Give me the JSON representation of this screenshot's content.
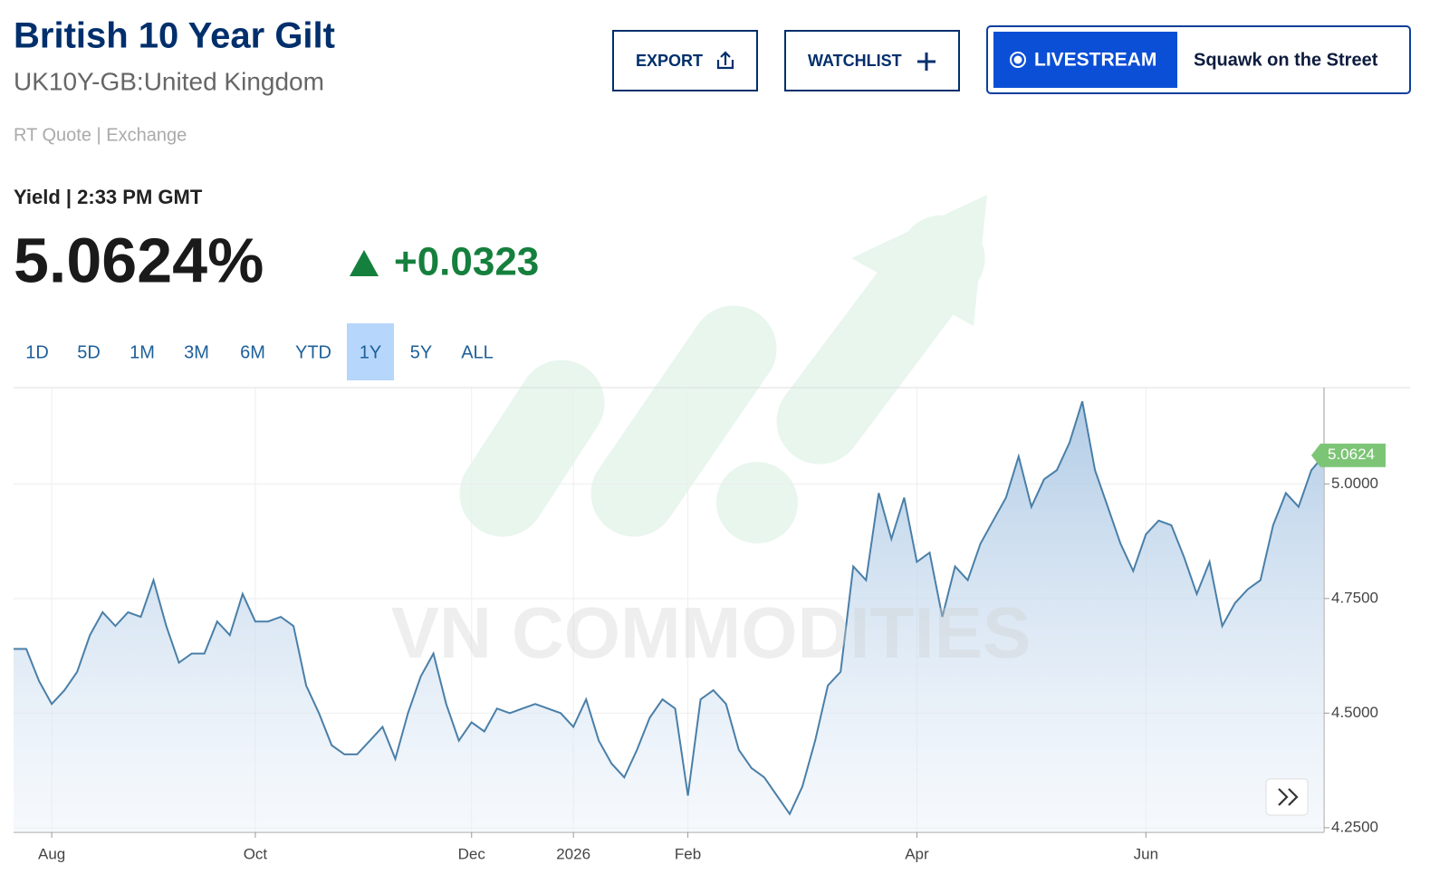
{
  "header": {
    "title": "British 10 Year Gilt",
    "subtitle": "UK10Y-GB:United Kingdom",
    "quote_source": "RT Quote | Exchange",
    "yield_time": "Yield | 2:33 PM GMT",
    "price": "5.0624%",
    "change": "+0.0323"
  },
  "buttons": {
    "export": "EXPORT",
    "watchlist": "WATCHLIST",
    "livestream": "LIVESTREAM",
    "show": "Squawk on the Street"
  },
  "ranges": {
    "options": [
      "1D",
      "5D",
      "1M",
      "3M",
      "6M",
      "YTD",
      "1Y",
      "5Y",
      "ALL"
    ],
    "active": 6
  },
  "watermark": "VN COMMODITIES",
  "chart_data": {
    "type": "line",
    "color": "#4a7fa8",
    "grid": true,
    "categories": [
      null,
      null,
      null,
      "Aug",
      null,
      null,
      null,
      null,
      null,
      null,
      null,
      null,
      null,
      null,
      null,
      null,
      null,
      null,
      null,
      "Oct",
      null,
      null,
      null,
      null,
      null,
      null,
      null,
      null,
      null,
      null,
      null,
      null,
      null,
      null,
      null,
      null,
      "Dec",
      null,
      null,
      null,
      null,
      null,
      null,
      null,
      "2026",
      null,
      null,
      null,
      null,
      null,
      null,
      null,
      null,
      "Feb",
      null,
      null,
      null,
      null,
      null,
      null,
      null,
      null,
      null,
      null,
      null,
      null,
      null,
      null,
      null,
      null,
      null,
      "Apr",
      null,
      null,
      null,
      null,
      null,
      null,
      null,
      null,
      null,
      null,
      null,
      null,
      null,
      null,
      null,
      null,
      null,
      "Jun",
      null,
      null,
      null,
      null,
      null,
      null,
      null,
      null,
      null,
      null,
      null,
      null,
      null,
      null
    ],
    "values": [
      4.64,
      4.64,
      4.57,
      4.52,
      4.55,
      4.59,
      4.67,
      4.72,
      4.69,
      4.72,
      4.71,
      4.79,
      4.69,
      4.61,
      4.63,
      4.63,
      4.7,
      4.67,
      4.76,
      4.7,
      4.7,
      4.71,
      4.69,
      4.56,
      4.5,
      4.43,
      4.41,
      4.41,
      4.44,
      4.47,
      4.4,
      4.5,
      4.58,
      4.63,
      4.52,
      4.44,
      4.48,
      4.46,
      4.51,
      4.5,
      4.51,
      4.52,
      4.51,
      4.5,
      4.47,
      4.53,
      4.44,
      4.39,
      4.36,
      4.42,
      4.49,
      4.53,
      4.51,
      4.32,
      4.53,
      4.55,
      4.52,
      4.42,
      4.38,
      4.36,
      4.32,
      4.28,
      4.34,
      4.44,
      4.56,
      4.59,
      4.82,
      4.79,
      4.98,
      4.88,
      4.97,
      4.83,
      4.85,
      4.71,
      4.82,
      4.79,
      4.87,
      4.92,
      4.97,
      5.06,
      4.95,
      5.01,
      5.03,
      5.09,
      5.18,
      5.03,
      4.95,
      4.87,
      4.81,
      4.89,
      4.92,
      4.91,
      4.84,
      4.76,
      4.83,
      4.69,
      4.74,
      4.77,
      4.79,
      4.91,
      4.98,
      4.95,
      5.03,
      5.0624
    ],
    "ylim": [
      4.24,
      5.21
    ],
    "yticks": [
      {
        "value": 4.25,
        "label": "4.2500"
      },
      {
        "value": 4.5,
        "label": "4.5000"
      },
      {
        "value": 4.75,
        "label": "4.7500"
      },
      {
        "value": 5,
        "label": "5.0000"
      }
    ]
  }
}
